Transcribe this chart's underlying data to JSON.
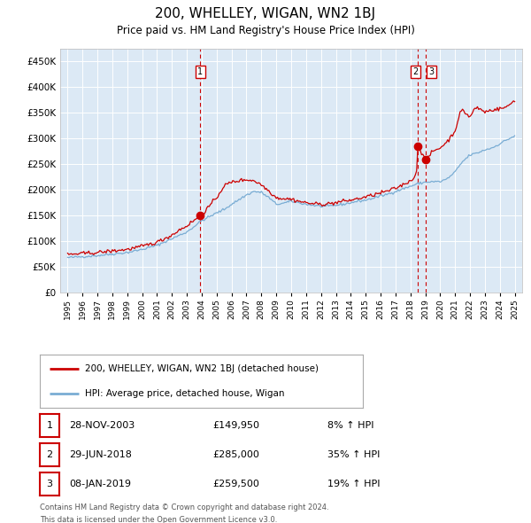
{
  "title": "200, WHELLEY, WIGAN, WN2 1BJ",
  "subtitle": "Price paid vs. HM Land Registry's House Price Index (HPI)",
  "red_label": "200, WHELLEY, WIGAN, WN2 1BJ (detached house)",
  "blue_label": "HPI: Average price, detached house, Wigan",
  "transactions": [
    {
      "num": 1,
      "date": "28-NOV-2003",
      "price": 149950,
      "pct": "8%",
      "dir": "↑"
    },
    {
      "num": 2,
      "date": "29-JUN-2018",
      "price": 285000,
      "pct": "35%",
      "dir": "↑"
    },
    {
      "num": 3,
      "date": "08-JAN-2019",
      "price": 259500,
      "pct": "19%",
      "dir": "↑"
    }
  ],
  "footer": [
    "Contains HM Land Registry data © Crown copyright and database right 2024.",
    "This data is licensed under the Open Government Licence v3.0."
  ],
  "sale1_x": 2003.9,
  "sale2_x": 2018.5,
  "sale3_x": 2019.05,
  "ylim": [
    0,
    475000
  ],
  "xlim": [
    1994.5,
    2025.5
  ],
  "bg_color": "#dce9f5",
  "grid_color": "#ffffff",
  "red_color": "#cc0000",
  "blue_color": "#7aadd4",
  "vline_color": "#cc0000"
}
